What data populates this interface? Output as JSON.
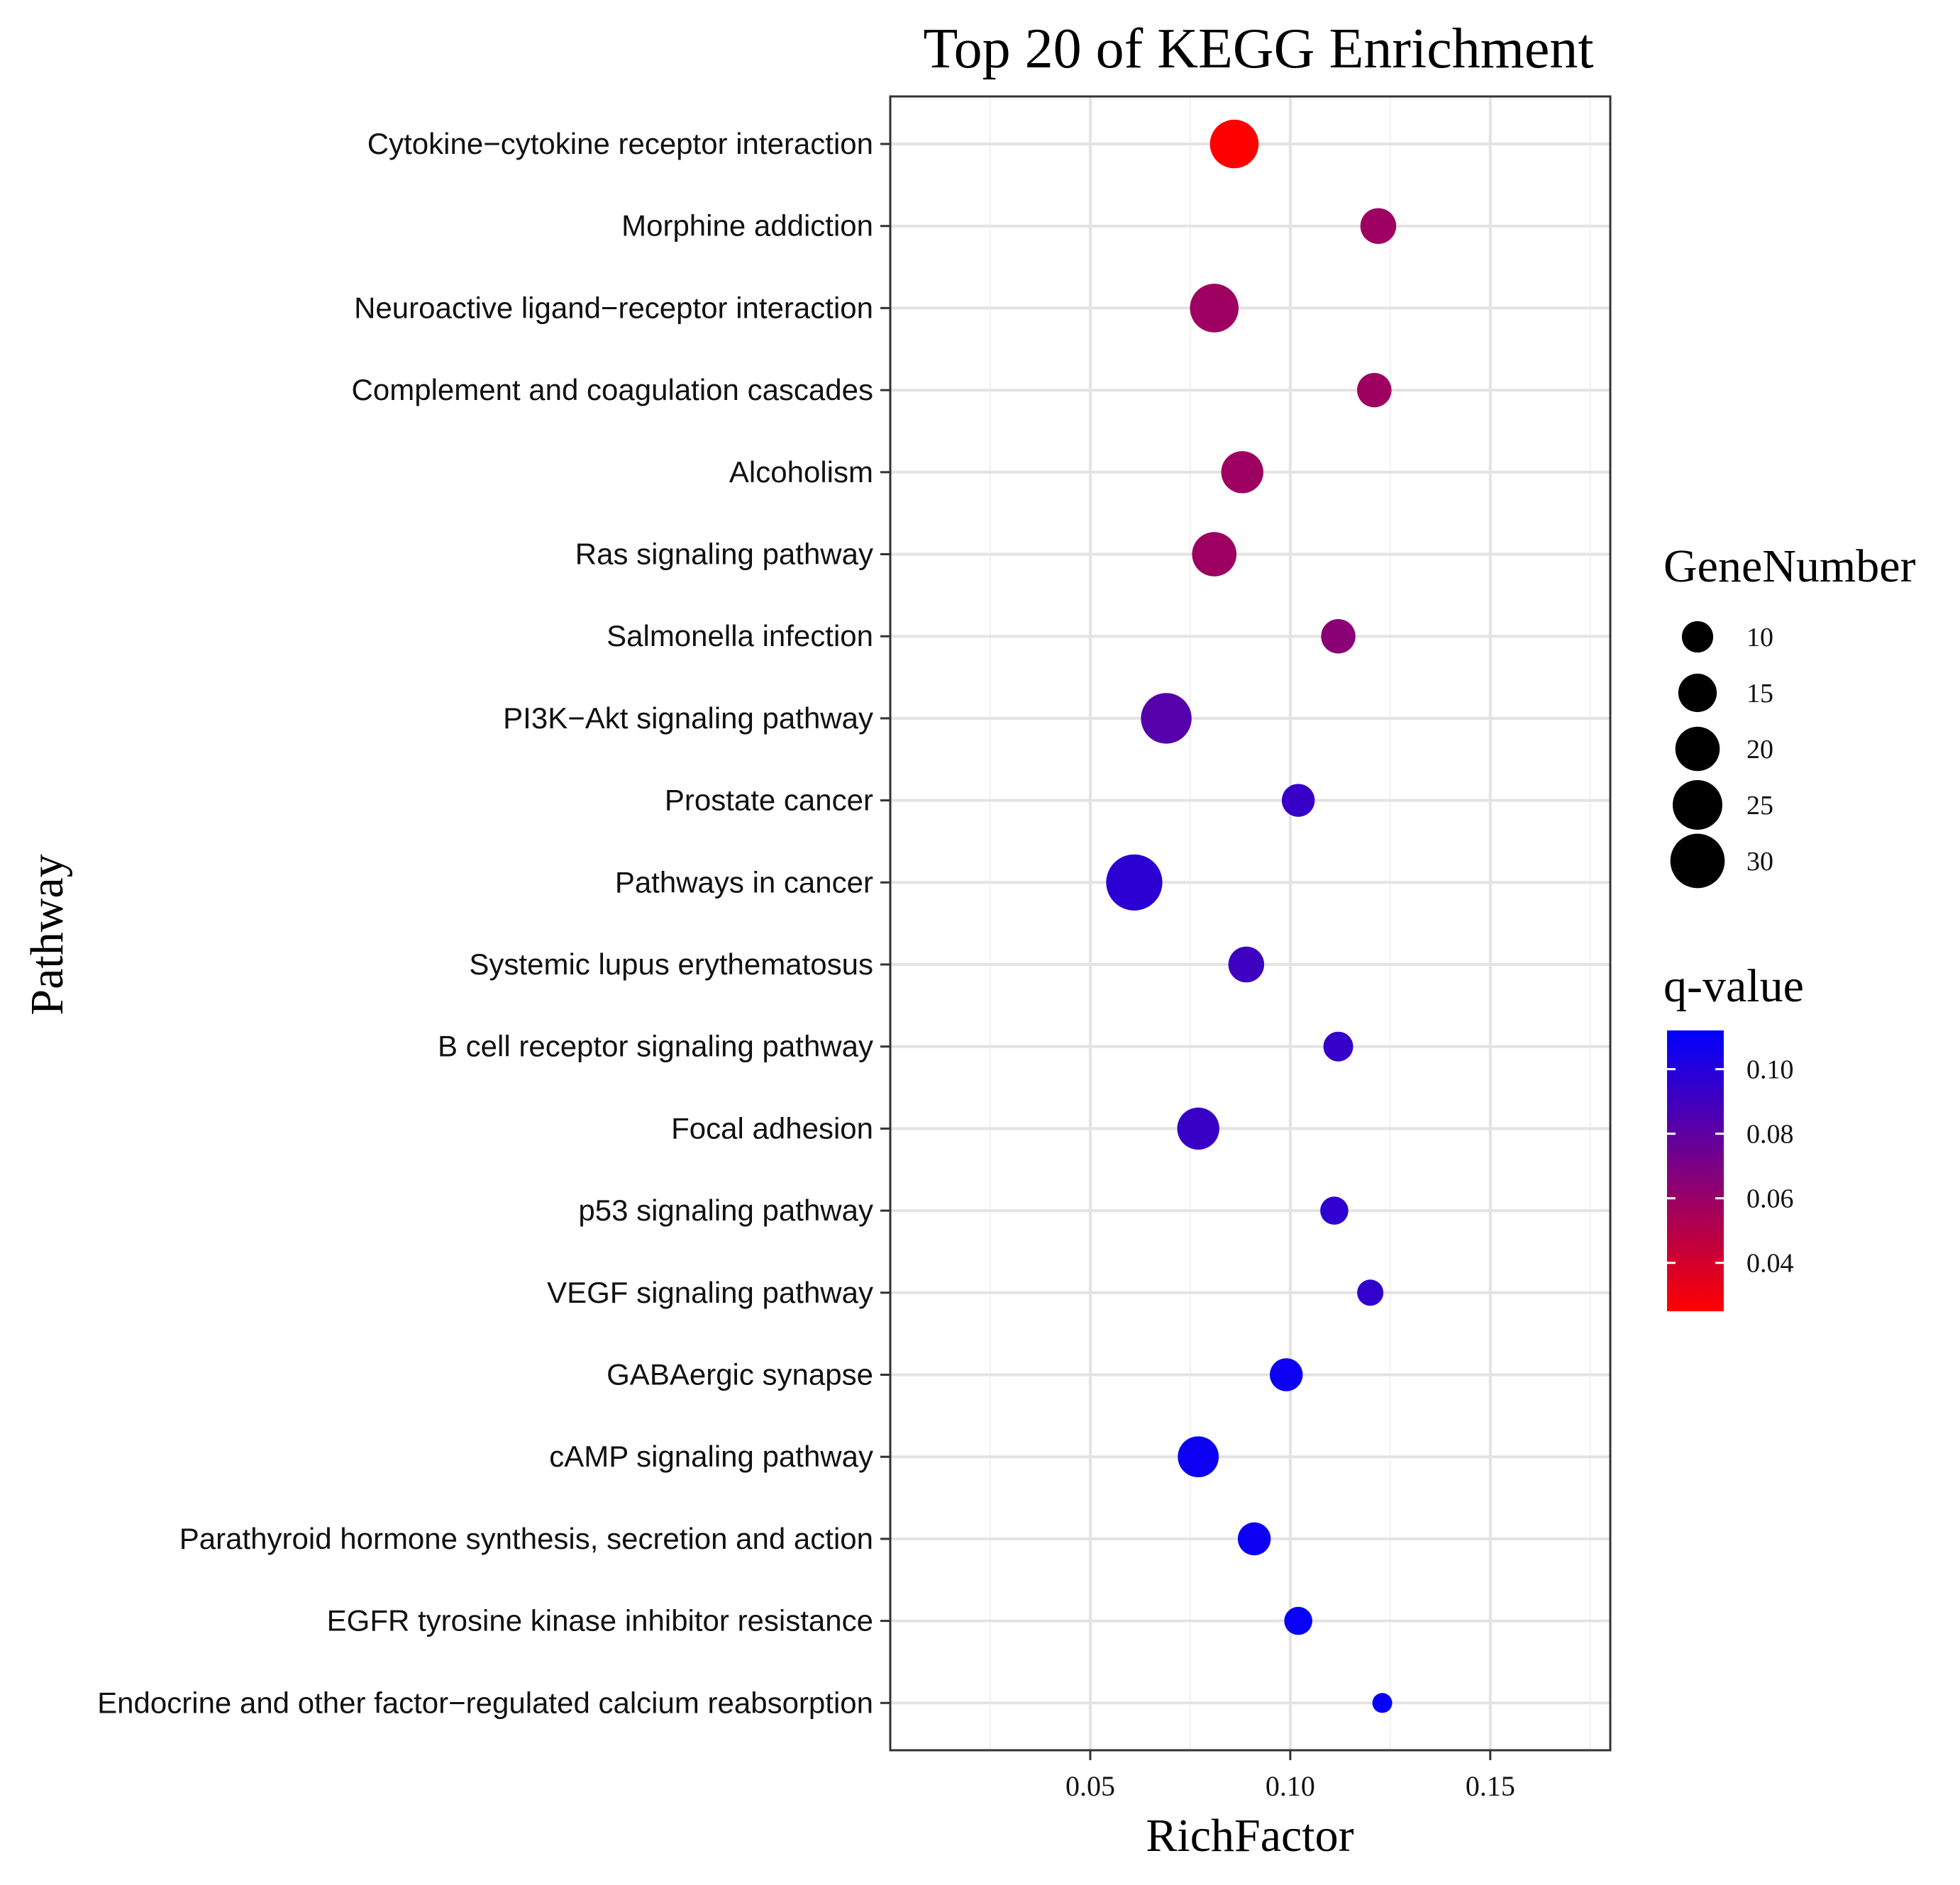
{
  "chart_data": {
    "type": "scatter",
    "title": "Top 20 of KEGG Enrichment",
    "xlabel": "RichFactor",
    "ylabel": "Pathway",
    "xlim": [
      0.0,
      0.18
    ],
    "xticks": [
      0.05,
      0.1,
      0.15
    ],
    "xtick_labels": [
      "0.05",
      "0.10",
      "0.15"
    ],
    "grid": true,
    "categories": [
      "Cytokine−cytokine receptor interaction",
      "Morphine addiction",
      "Neuroactive ligand−receptor interaction",
      "Complement and coagulation cascades",
      "Alcoholism",
      "Ras signaling pathway",
      "Salmonella infection",
      "PI3K−Akt signaling pathway",
      "Prostate cancer",
      "Pathways in cancer",
      "Systemic lupus erythematosus",
      "B cell receptor signaling pathway",
      "Focal adhesion",
      "p53 signaling pathway",
      "VEGF signaling pathway",
      "GABAergic synapse",
      "cAMP signaling pathway",
      "Parathyroid hormone synthesis, secretion and action",
      "EGFR tyrosine kinase inhibitor resistance",
      "Endocrine and other factor−regulated calcium reabsorption"
    ],
    "rich_factor": [
      0.086,
      0.122,
      0.081,
      0.121,
      0.088,
      0.081,
      0.112,
      0.069,
      0.102,
      0.061,
      0.089,
      0.112,
      0.077,
      0.111,
      0.12,
      0.099,
      0.077,
      0.091,
      0.102,
      0.123
    ],
    "gene_number": [
      24,
      13,
      24,
      12,
      18,
      20,
      12,
      26,
      11,
      32,
      13,
      9,
      18,
      8,
      7,
      11,
      17,
      11,
      8,
      4
    ],
    "q_value": [
      0.025,
      0.058,
      0.058,
      0.058,
      0.058,
      0.058,
      0.065,
      0.083,
      0.093,
      0.097,
      0.091,
      0.094,
      0.093,
      0.096,
      0.095,
      0.108,
      0.108,
      0.108,
      0.109,
      0.11
    ],
    "size_legend": {
      "title": "GeneNumber",
      "values": [
        10,
        15,
        20,
        25,
        30
      ],
      "labels": [
        "10",
        "15",
        "20",
        "25",
        "30"
      ]
    },
    "color_legend": {
      "title": "q-value",
      "range": [
        0.025,
        0.112
      ],
      "ticks": [
        0.04,
        0.06,
        0.08,
        0.1
      ],
      "labels": [
        "0.04",
        "0.06",
        "0.08",
        "0.10"
      ],
      "low_color": "#ff0000",
      "high_color": "#0000ff"
    }
  }
}
